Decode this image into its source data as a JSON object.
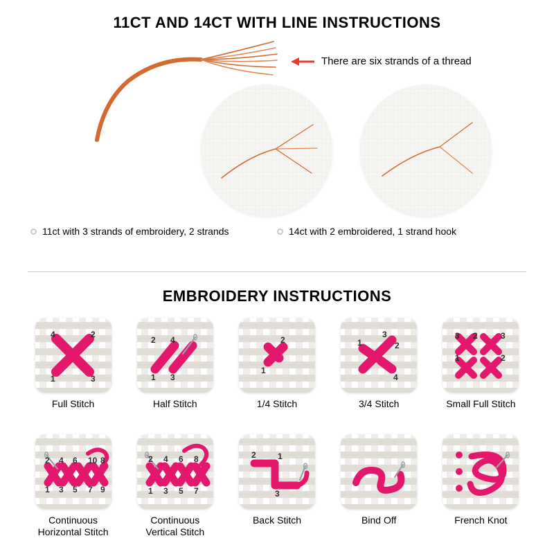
{
  "titles": {
    "top": "11CT AND 14CT WITH LINE INSTRUCTIONS",
    "bottom": "EMBROIDERY INSTRUCTIONS",
    "top_fontsize": 22,
    "bottom_fontsize": 22
  },
  "thread_note": {
    "text": "There are six strands of a thread",
    "arrow_color": "#e7392c",
    "bullet_color": "#c9c9c9"
  },
  "colors": {
    "thread": "#d36a2f",
    "thread_light": "#e08a52",
    "stitch": "#e3176b",
    "stitch_dark": "#c0125a",
    "canvas_line": "#e0ded7",
    "canvas_line_dark": "#d3d1c8",
    "tile_bg": "#ffffff",
    "circle_bg": "#f5f5f3",
    "number": "#2e2e2e",
    "needle": "#9aa0a6",
    "divider": "#cfcfcf"
  },
  "captions": {
    "left": "11ct with 3 strands of embroidery, 2 strands",
    "right": "14ct with 2 embroidered, 1 strand hook"
  },
  "circles": {
    "c1_strands": 3,
    "c2_strands": 2
  },
  "stitches": [
    {
      "id": "full",
      "label": "Full Stitch",
      "numbers": [
        "4",
        "2",
        "1",
        "3"
      ]
    },
    {
      "id": "half",
      "label": "Half Stitch",
      "numbers": [
        "2",
        "4",
        "1",
        "3"
      ]
    },
    {
      "id": "quarter",
      "label": "1/4 Stitch",
      "numbers": [
        "2",
        "1"
      ]
    },
    {
      "id": "threequart",
      "label": "3/4 Stitch",
      "numbers": [
        "1",
        "3",
        "2",
        "4"
      ]
    },
    {
      "id": "smallfull",
      "label": "Small Full Stitch",
      "numbers": [
        "3",
        "2",
        "1",
        "3",
        "2"
      ]
    },
    {
      "id": "conthoriz",
      "label": "Continuous\nHorizontal Stitch",
      "numbers": [
        "2",
        "1",
        "4",
        "3",
        "6",
        "5",
        "10",
        "7",
        "8",
        "9"
      ]
    },
    {
      "id": "contvert",
      "label": "Continuous\nVertical Stitch",
      "numbers": [
        "2",
        "4",
        "6",
        "8",
        "1",
        "3",
        "5",
        "7"
      ]
    },
    {
      "id": "back",
      "label": "Back Stitch",
      "numbers": [
        "2",
        "1",
        "3"
      ]
    },
    {
      "id": "bindoff",
      "label": "Bind Off",
      "numbers": []
    },
    {
      "id": "french",
      "label": "French Knot",
      "numbers": []
    }
  ],
  "tile": {
    "grid_lines": 5,
    "border_radius": 14
  }
}
